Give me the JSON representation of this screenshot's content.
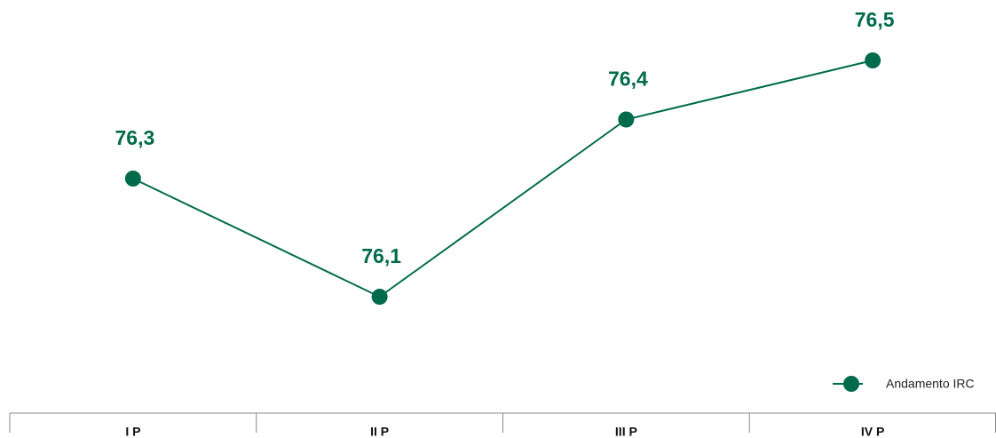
{
  "chart_data": {
    "type": "line",
    "categories": [
      "I P",
      "II P",
      "III P",
      "IV P"
    ],
    "series": [
      {
        "name": "Andamento IRC",
        "color": "#006b4a",
        "values": [
          76.3,
          76.1,
          76.4,
          76.5
        ],
        "value_labels": [
          "76,3",
          "76,1",
          "76,4",
          "76,5"
        ]
      }
    ],
    "legend": "lower right"
  }
}
